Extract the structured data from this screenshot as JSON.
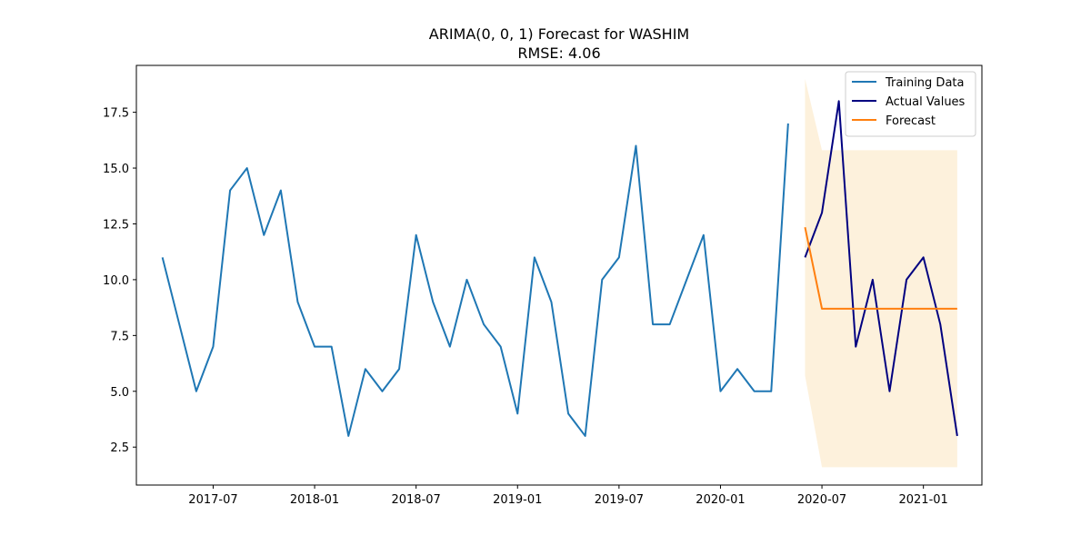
{
  "chart_data": {
    "type": "line",
    "title": "ARIMA(0, 0, 1) Forecast for WASHIM",
    "subtitle": "RMSE: 4.06",
    "xlabel": "",
    "ylabel": "",
    "xlim": [
      "2017-02-15",
      "2021-04-15"
    ],
    "ylim": [
      0.8,
      19.6
    ],
    "grid": false,
    "legend_position": "upper-right",
    "x_ticks": [
      "2017-07",
      "2018-01",
      "2018-07",
      "2019-01",
      "2019-07",
      "2020-01",
      "2020-07",
      "2021-01"
    ],
    "y_ticks": [
      "2.5",
      "5.0",
      "7.5",
      "10.0",
      "12.5",
      "15.0",
      "17.5"
    ],
    "series": [
      {
        "name": "Training Data",
        "color": "#1f77b4",
        "x": [
          "2017-04",
          "2017-05",
          "2017-06",
          "2017-07",
          "2017-08",
          "2017-09",
          "2017-10",
          "2017-11",
          "2017-12",
          "2018-01",
          "2018-02",
          "2018-03",
          "2018-04",
          "2018-05",
          "2018-06",
          "2018-07",
          "2018-08",
          "2018-09",
          "2018-10",
          "2018-11",
          "2018-12",
          "2019-01",
          "2019-02",
          "2019-03",
          "2019-04",
          "2019-05",
          "2019-06",
          "2019-07",
          "2019-08",
          "2019-09",
          "2019-10",
          "2019-11",
          "2019-12",
          "2020-01",
          "2020-02",
          "2020-03",
          "2020-04",
          "2020-05"
        ],
        "values": [
          11,
          8,
          5,
          7,
          14,
          15,
          12,
          14,
          9,
          7,
          7,
          3,
          6,
          5,
          6,
          12,
          9,
          7,
          10,
          8,
          7,
          4,
          11,
          9,
          4,
          3,
          10,
          11,
          16,
          8,
          8,
          10,
          12,
          5,
          6,
          5,
          5,
          17
        ]
      },
      {
        "name": "Actual Values",
        "color": "#000080",
        "x": [
          "2020-06",
          "2020-07",
          "2020-08",
          "2020-09",
          "2020-10",
          "2020-11",
          "2020-12",
          "2021-01",
          "2021-02",
          "2021-03"
        ],
        "values": [
          11,
          13,
          18,
          7,
          10,
          5,
          10,
          11,
          8,
          3
        ]
      },
      {
        "name": "Forecast",
        "color": "#ff7f0e",
        "x": [
          "2020-06",
          "2020-07",
          "2020-08",
          "2020-09",
          "2020-10",
          "2020-11",
          "2020-12",
          "2021-01",
          "2021-02",
          "2021-03"
        ],
        "values": [
          12.35,
          8.7,
          8.7,
          8.7,
          8.7,
          8.7,
          8.7,
          8.7,
          8.7,
          8.7
        ]
      }
    ],
    "confidence_interval": {
      "color": "#fdf1dc",
      "x": [
        "2020-06",
        "2020-07",
        "2020-08",
        "2020-09",
        "2020-10",
        "2020-11",
        "2020-12",
        "2021-01",
        "2021-02",
        "2021-03"
      ],
      "lower": [
        5.7,
        1.6,
        1.6,
        1.6,
        1.6,
        1.6,
        1.6,
        1.6,
        1.6,
        1.6
      ],
      "upper": [
        19.0,
        15.8,
        15.8,
        15.8,
        15.8,
        15.8,
        15.8,
        15.8,
        15.8,
        15.8
      ]
    }
  }
}
